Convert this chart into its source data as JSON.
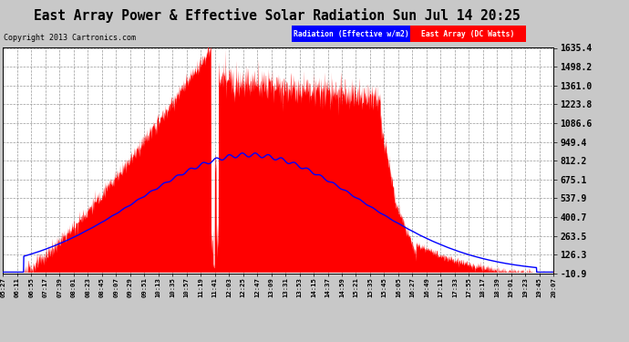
{
  "title": "East Array Power & Effective Solar Radiation Sun Jul 14 20:25",
  "copyright": "Copyright 2013 Cartronics.com",
  "legend_blue": "Radiation (Effective w/m2)",
  "legend_red": "East Array (DC Watts)",
  "bg_color": "#c8c8c8",
  "plot_bg_color": "#ffffff",
  "grid_color": "#999999",
  "yticks": [
    -10.9,
    126.3,
    263.5,
    400.7,
    537.9,
    675.1,
    812.2,
    949.4,
    1086.6,
    1223.8,
    1361.0,
    1498.2,
    1635.4
  ],
  "ylim": [
    -10.9,
    1635.4
  ],
  "xtick_labels": [
    "05:27",
    "06:11",
    "06:55",
    "07:17",
    "07:39",
    "08:01",
    "08:23",
    "08:45",
    "09:07",
    "09:29",
    "09:51",
    "10:13",
    "10:35",
    "10:57",
    "11:19",
    "11:41",
    "12:03",
    "12:25",
    "12:47",
    "13:09",
    "13:31",
    "13:53",
    "14:15",
    "14:37",
    "14:59",
    "15:21",
    "15:35",
    "15:45",
    "16:05",
    "16:27",
    "16:49",
    "17:11",
    "17:33",
    "17:55",
    "18:17",
    "18:39",
    "19:01",
    "19:23",
    "19:45",
    "20:07"
  ]
}
